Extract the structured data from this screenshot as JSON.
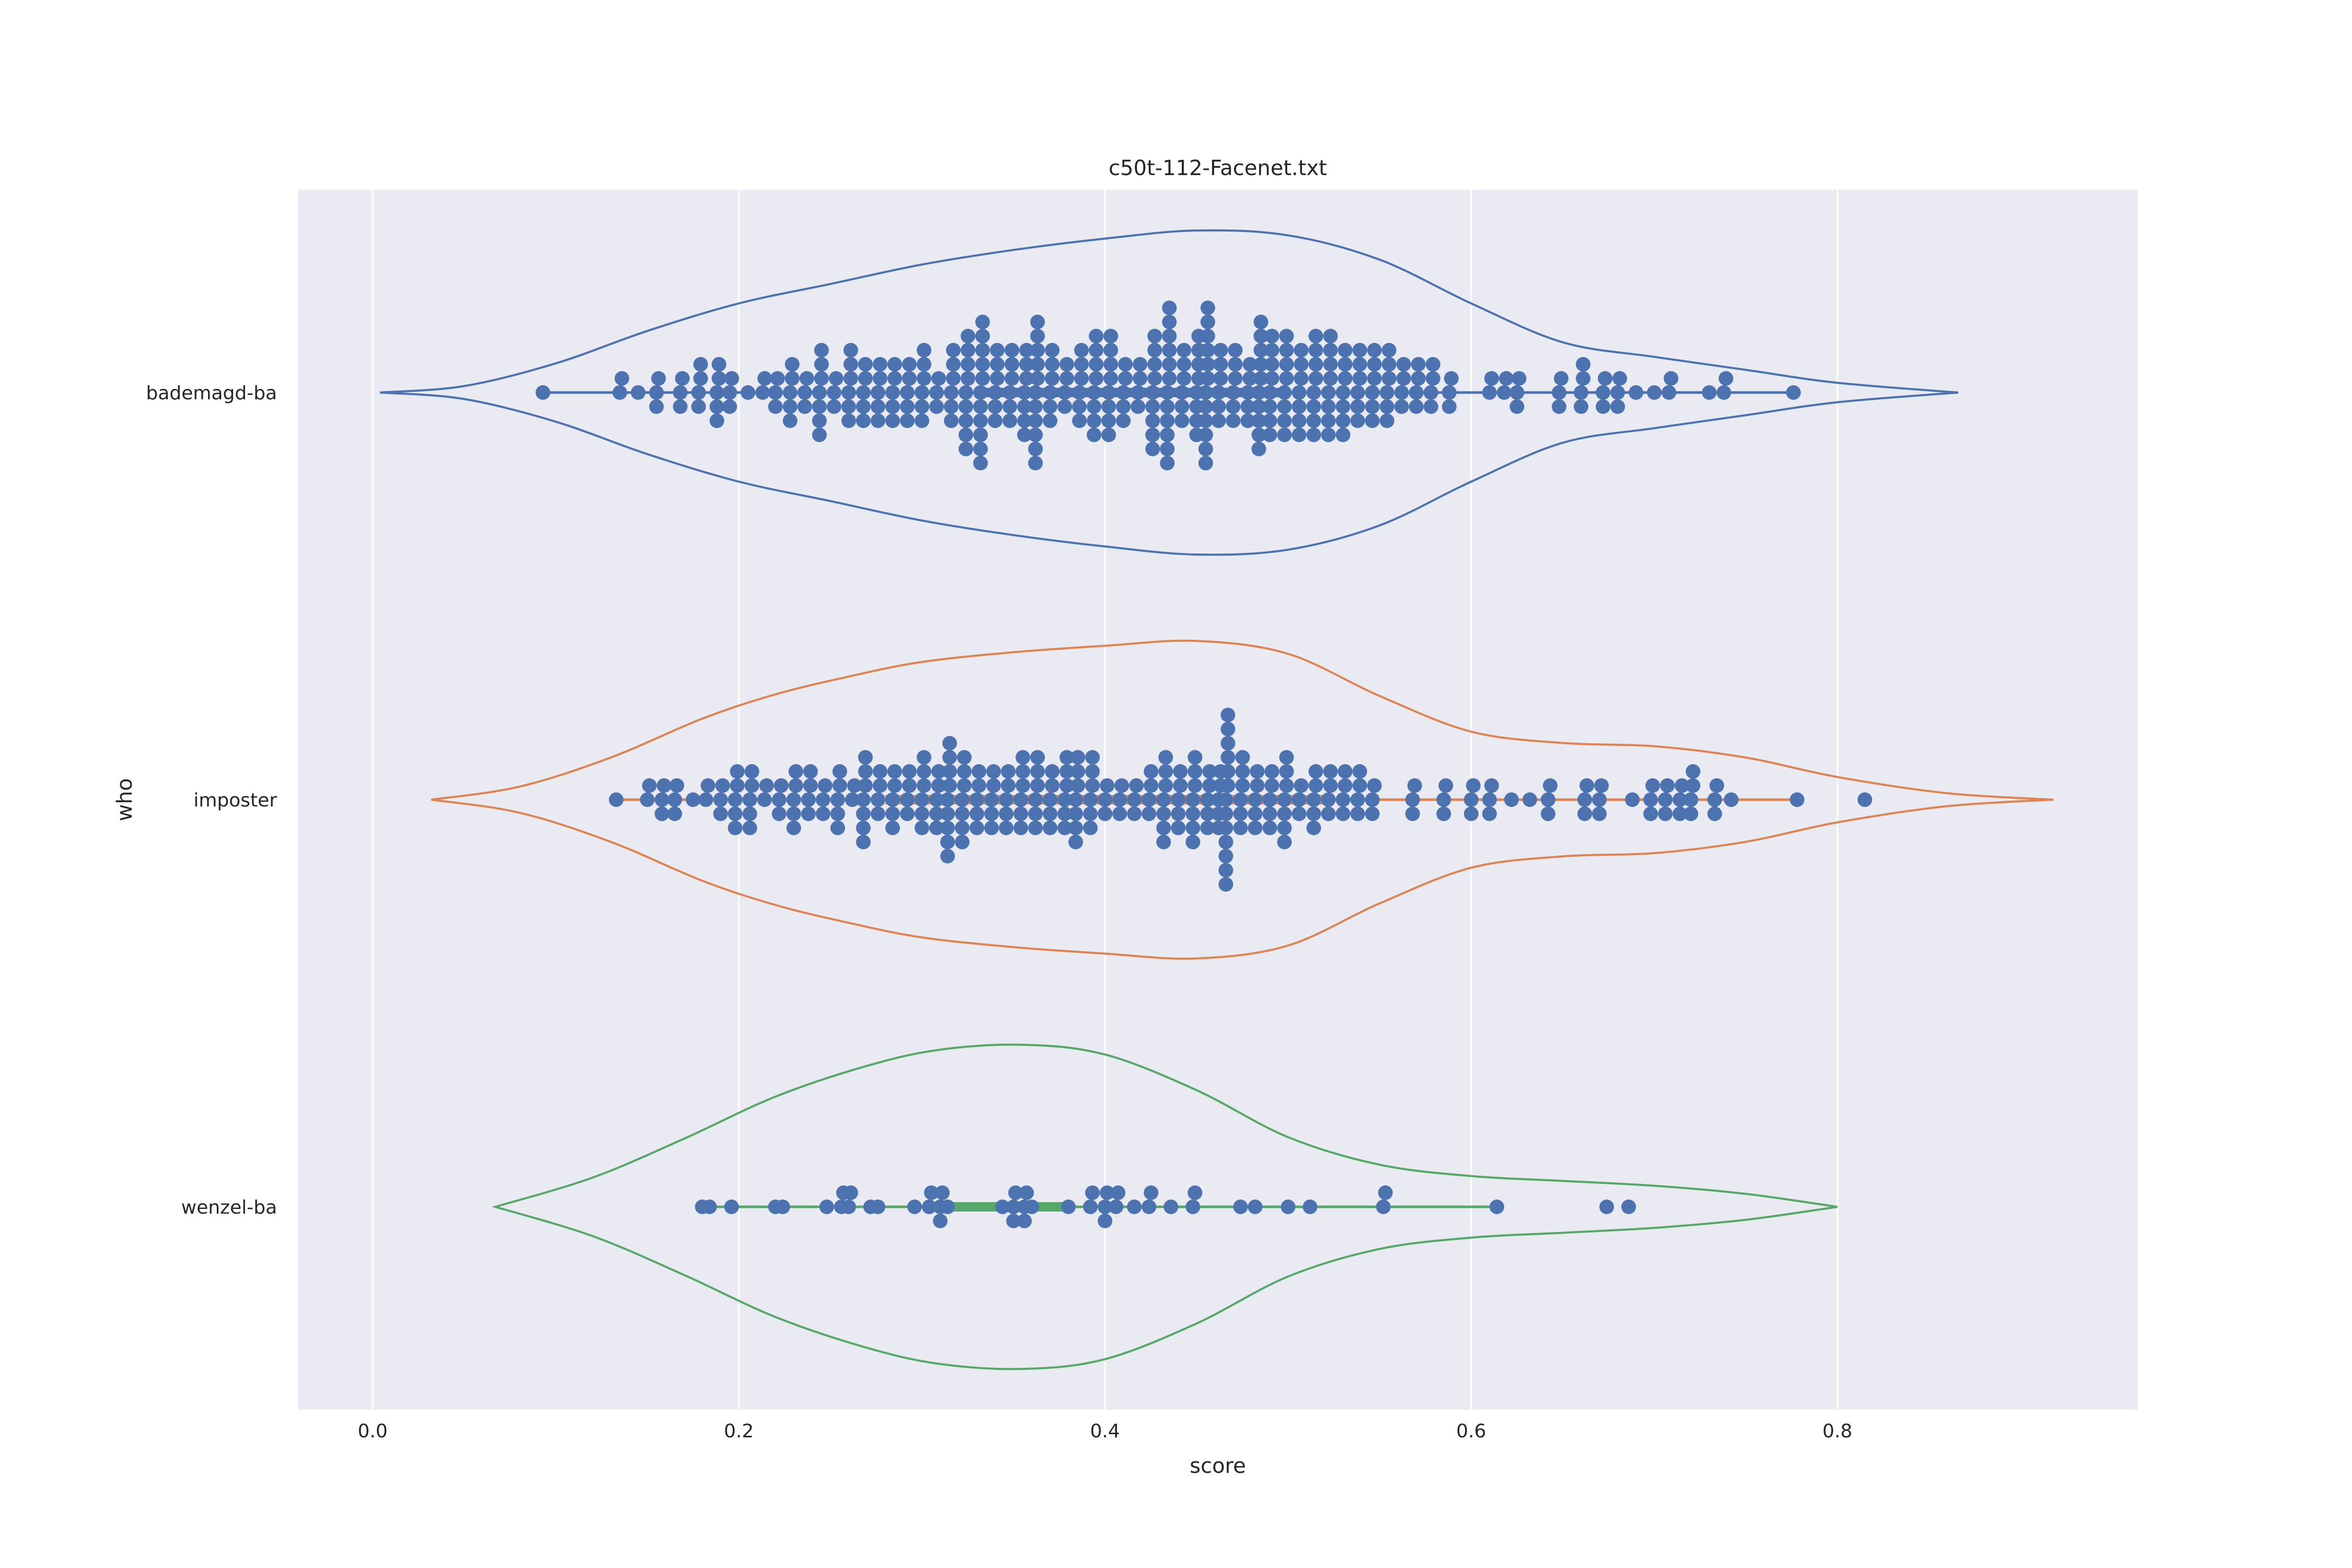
{
  "chart_data": {
    "type": "violin+swarm",
    "title": "c50t-112-Facenet.txt",
    "xlabel": "score",
    "ylabel": "who",
    "xlim": [
      -0.042,
      0.96
    ],
    "x_ticks": [
      0.0,
      0.2,
      0.4,
      0.6,
      0.8
    ],
    "x_tick_labels": [
      "0.0",
      "0.2",
      "0.4",
      "0.6",
      "0.8"
    ],
    "grid": true,
    "point_color": "#4c72b0",
    "background_color": "#eaeaf2",
    "categories": [
      "bademagd-ba",
      "imposter",
      "wenzel-ba"
    ],
    "series": [
      {
        "name": "bademagd-ba",
        "color": "#4c72b0",
        "violin": {
          "min": 0.004,
          "max": 0.866,
          "density_x": [
            0.004,
            0.05,
            0.1,
            0.15,
            0.2,
            0.25,
            0.3,
            0.35,
            0.4,
            0.45,
            0.5,
            0.55,
            0.6,
            0.65,
            0.7,
            0.75,
            0.8,
            0.866
          ],
          "density_w": [
            0.0,
            0.04,
            0.18,
            0.38,
            0.55,
            0.67,
            0.79,
            0.88,
            0.95,
            1.0,
            0.97,
            0.82,
            0.55,
            0.31,
            0.22,
            0.14,
            0.06,
            0.0
          ],
          "box": [
            0.33,
            0.5
          ],
          "whisker": [
            0.09,
            0.78
          ]
        },
        "points": [
          {
            "x": 0.093,
            "n": 1
          },
          {
            "x": 0.135,
            "n": 2
          },
          {
            "x": 0.145,
            "n": 1
          },
          {
            "x": 0.155,
            "n": 3
          },
          {
            "x": 0.168,
            "n": 3
          },
          {
            "x": 0.178,
            "n": 4
          },
          {
            "x": 0.188,
            "n": 5
          },
          {
            "x": 0.195,
            "n": 3
          },
          {
            "x": 0.205,
            "n": 1
          },
          {
            "x": 0.213,
            "n": 2
          },
          {
            "x": 0.22,
            "n": 3
          },
          {
            "x": 0.228,
            "n": 5
          },
          {
            "x": 0.236,
            "n": 3
          },
          {
            "x": 0.244,
            "n": 7
          },
          {
            "x": 0.252,
            "n": 3
          },
          {
            "x": 0.26,
            "n": 6
          },
          {
            "x": 0.268,
            "n": 5
          },
          {
            "x": 0.276,
            "n": 5
          },
          {
            "x": 0.284,
            "n": 5
          },
          {
            "x": 0.292,
            "n": 5
          },
          {
            "x": 0.3,
            "n": 6
          },
          {
            "x": 0.308,
            "n": 3
          },
          {
            "x": 0.316,
            "n": 6
          },
          {
            "x": 0.324,
            "n": 9
          },
          {
            "x": 0.332,
            "n": 11
          },
          {
            "x": 0.34,
            "n": 6
          },
          {
            "x": 0.348,
            "n": 6
          },
          {
            "x": 0.356,
            "n": 7
          },
          {
            "x": 0.362,
            "n": 11
          },
          {
            "x": 0.37,
            "n": 6
          },
          {
            "x": 0.378,
            "n": 4
          },
          {
            "x": 0.386,
            "n": 6
          },
          {
            "x": 0.394,
            "n": 8
          },
          {
            "x": 0.402,
            "n": 8
          },
          {
            "x": 0.41,
            "n": 5
          },
          {
            "x": 0.418,
            "n": 4
          },
          {
            "x": 0.426,
            "n": 9
          },
          {
            "x": 0.434,
            "n": 12
          },
          {
            "x": 0.442,
            "n": 6
          },
          {
            "x": 0.45,
            "n": 8
          },
          {
            "x": 0.455,
            "n": 12
          },
          {
            "x": 0.462,
            "n": 6
          },
          {
            "x": 0.47,
            "n": 6
          },
          {
            "x": 0.478,
            "n": 5
          },
          {
            "x": 0.484,
            "n": 10
          },
          {
            "x": 0.49,
            "n": 8
          },
          {
            "x": 0.498,
            "n": 8
          },
          {
            "x": 0.506,
            "n": 7
          },
          {
            "x": 0.514,
            "n": 8
          },
          {
            "x": 0.522,
            "n": 8
          },
          {
            "x": 0.53,
            "n": 7
          },
          {
            "x": 0.538,
            "n": 6
          },
          {
            "x": 0.546,
            "n": 6
          },
          {
            "x": 0.554,
            "n": 6
          },
          {
            "x": 0.562,
            "n": 4
          },
          {
            "x": 0.57,
            "n": 4
          },
          {
            "x": 0.578,
            "n": 4
          },
          {
            "x": 0.588,
            "n": 3
          },
          {
            "x": 0.61,
            "n": 2
          },
          {
            "x": 0.618,
            "n": 2
          },
          {
            "x": 0.625,
            "n": 3
          },
          {
            "x": 0.648,
            "n": 3
          },
          {
            "x": 0.66,
            "n": 4
          },
          {
            "x": 0.672,
            "n": 3
          },
          {
            "x": 0.68,
            "n": 3
          },
          {
            "x": 0.69,
            "n": 1
          },
          {
            "x": 0.7,
            "n": 1
          },
          {
            "x": 0.708,
            "n": 2
          },
          {
            "x": 0.73,
            "n": 1
          },
          {
            "x": 0.738,
            "n": 2
          },
          {
            "x": 0.776,
            "n": 1
          }
        ]
      },
      {
        "name": "imposter",
        "color": "#dd8452",
        "violin": {
          "min": 0.032,
          "max": 0.918,
          "density_x": [
            0.032,
            0.08,
            0.13,
            0.18,
            0.22,
            0.26,
            0.3,
            0.35,
            0.4,
            0.45,
            0.5,
            0.55,
            0.6,
            0.65,
            0.7,
            0.75,
            0.8,
            0.86,
            0.918
          ],
          "density_w": [
            0.0,
            0.08,
            0.26,
            0.5,
            0.65,
            0.76,
            0.85,
            0.91,
            0.95,
            0.98,
            0.9,
            0.64,
            0.42,
            0.35,
            0.33,
            0.26,
            0.14,
            0.04,
            0.0
          ],
          "box": [
            0.28,
            0.52
          ],
          "whisker": [
            0.13,
            0.78
          ]
        },
        "points": [
          {
            "x": 0.133,
            "n": 1
          },
          {
            "x": 0.15,
            "n": 2
          },
          {
            "x": 0.158,
            "n": 3
          },
          {
            "x": 0.165,
            "n": 3
          },
          {
            "x": 0.175,
            "n": 1
          },
          {
            "x": 0.182,
            "n": 2
          },
          {
            "x": 0.19,
            "n": 3
          },
          {
            "x": 0.198,
            "n": 5
          },
          {
            "x": 0.206,
            "n": 5
          },
          {
            "x": 0.214,
            "n": 2
          },
          {
            "x": 0.222,
            "n": 3
          },
          {
            "x": 0.23,
            "n": 5
          },
          {
            "x": 0.238,
            "n": 4
          },
          {
            "x": 0.246,
            "n": 3
          },
          {
            "x": 0.254,
            "n": 5
          },
          {
            "x": 0.262,
            "n": 2
          },
          {
            "x": 0.268,
            "n": 7
          },
          {
            "x": 0.276,
            "n": 4
          },
          {
            "x": 0.284,
            "n": 5
          },
          {
            "x": 0.292,
            "n": 4
          },
          {
            "x": 0.3,
            "n": 6
          },
          {
            "x": 0.308,
            "n": 5
          },
          {
            "x": 0.314,
            "n": 9
          },
          {
            "x": 0.322,
            "n": 7
          },
          {
            "x": 0.33,
            "n": 5
          },
          {
            "x": 0.338,
            "n": 5
          },
          {
            "x": 0.346,
            "n": 5
          },
          {
            "x": 0.354,
            "n": 6
          },
          {
            "x": 0.362,
            "n": 6
          },
          {
            "x": 0.37,
            "n": 5
          },
          {
            "x": 0.378,
            "n": 6
          },
          {
            "x": 0.384,
            "n": 7
          },
          {
            "x": 0.392,
            "n": 6
          },
          {
            "x": 0.4,
            "n": 3
          },
          {
            "x": 0.408,
            "n": 3
          },
          {
            "x": 0.416,
            "n": 3
          },
          {
            "x": 0.424,
            "n": 4
          },
          {
            "x": 0.432,
            "n": 7
          },
          {
            "x": 0.44,
            "n": 5
          },
          {
            "x": 0.448,
            "n": 7
          },
          {
            "x": 0.456,
            "n": 5
          },
          {
            "x": 0.462,
            "n": 5
          },
          {
            "x": 0.466,
            "n": 13
          },
          {
            "x": 0.474,
            "n": 6
          },
          {
            "x": 0.482,
            "n": 5
          },
          {
            "x": 0.49,
            "n": 5
          },
          {
            "x": 0.498,
            "n": 7
          },
          {
            "x": 0.506,
            "n": 3
          },
          {
            "x": 0.514,
            "n": 5
          },
          {
            "x": 0.522,
            "n": 4
          },
          {
            "x": 0.53,
            "n": 4
          },
          {
            "x": 0.538,
            "n": 4
          },
          {
            "x": 0.546,
            "n": 3
          },
          {
            "x": 0.568,
            "n": 3
          },
          {
            "x": 0.585,
            "n": 3
          },
          {
            "x": 0.6,
            "n": 3
          },
          {
            "x": 0.61,
            "n": 3
          },
          {
            "x": 0.622,
            "n": 1
          },
          {
            "x": 0.632,
            "n": 1
          },
          {
            "x": 0.642,
            "n": 3
          },
          {
            "x": 0.662,
            "n": 3
          },
          {
            "x": 0.67,
            "n": 3
          },
          {
            "x": 0.688,
            "n": 1
          },
          {
            "x": 0.698,
            "n": 3
          },
          {
            "x": 0.706,
            "n": 3
          },
          {
            "x": 0.714,
            "n": 3
          },
          {
            "x": 0.72,
            "n": 4
          },
          {
            "x": 0.733,
            "n": 3
          },
          {
            "x": 0.742,
            "n": 1
          },
          {
            "x": 0.778,
            "n": 1
          },
          {
            "x": 0.815,
            "n": 1
          }
        ]
      },
      {
        "name": "wenzel-ba",
        "color": "#55a868",
        "violin": {
          "min": 0.067,
          "max": 0.8,
          "density_x": [
            0.067,
            0.12,
            0.17,
            0.22,
            0.27,
            0.31,
            0.356,
            0.4,
            0.45,
            0.5,
            0.55,
            0.6,
            0.65,
            0.7,
            0.75,
            0.8
          ],
          "density_w": [
            0.0,
            0.18,
            0.42,
            0.68,
            0.87,
            0.97,
            1.0,
            0.94,
            0.72,
            0.43,
            0.26,
            0.19,
            0.16,
            0.13,
            0.08,
            0.0
          ],
          "box": [
            0.31,
            0.38
          ],
          "whisker": [
            0.18,
            0.615
          ]
        },
        "points": [
          {
            "x": 0.18,
            "n": 1
          },
          {
            "x": 0.184,
            "n": 1
          },
          {
            "x": 0.196,
            "n": 1
          },
          {
            "x": 0.22,
            "n": 1
          },
          {
            "x": 0.224,
            "n": 1
          },
          {
            "x": 0.248,
            "n": 1
          },
          {
            "x": 0.256,
            "n": 2
          },
          {
            "x": 0.26,
            "n": 2
          },
          {
            "x": 0.272,
            "n": 1
          },
          {
            "x": 0.276,
            "n": 1
          },
          {
            "x": 0.296,
            "n": 1
          },
          {
            "x": 0.304,
            "n": 2
          },
          {
            "x": 0.31,
            "n": 3
          },
          {
            "x": 0.314,
            "n": 1
          },
          {
            "x": 0.344,
            "n": 1
          },
          {
            "x": 0.35,
            "n": 3
          },
          {
            "x": 0.356,
            "n": 3
          },
          {
            "x": 0.36,
            "n": 1
          },
          {
            "x": 0.38,
            "n": 1
          },
          {
            "x": 0.392,
            "n": 2
          },
          {
            "x": 0.4,
            "n": 3
          },
          {
            "x": 0.406,
            "n": 2
          },
          {
            "x": 0.416,
            "n": 1
          },
          {
            "x": 0.424,
            "n": 2
          },
          {
            "x": 0.436,
            "n": 1
          },
          {
            "x": 0.448,
            "n": 2
          },
          {
            "x": 0.474,
            "n": 1
          },
          {
            "x": 0.482,
            "n": 1
          },
          {
            "x": 0.5,
            "n": 1
          },
          {
            "x": 0.512,
            "n": 1
          },
          {
            "x": 0.552,
            "n": 2
          },
          {
            "x": 0.614,
            "n": 1
          },
          {
            "x": 0.674,
            "n": 1
          },
          {
            "x": 0.686,
            "n": 1
          }
        ]
      }
    ]
  }
}
